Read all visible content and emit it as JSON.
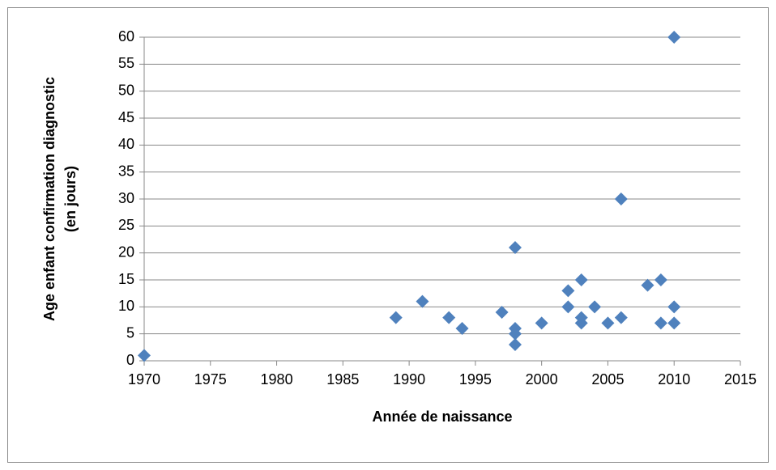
{
  "chart_data": {
    "type": "scatter",
    "xlabel": "Année de naissance",
    "ylabel": [
      "Age enfant confirmation diagnostic",
      "(en jours)"
    ],
    "x": [
      1970,
      1989,
      1991,
      1993,
      1994,
      1997,
      1998,
      1998,
      1998,
      1998,
      2000,
      2002,
      2002,
      2003,
      2003,
      2003,
      2004,
      2005,
      2006,
      2006,
      2008,
      2009,
      2009,
      2010,
      2010,
      2010
    ],
    "values": [
      1,
      8,
      11,
      8,
      6,
      9,
      21,
      6,
      5,
      3,
      7,
      13,
      10,
      15,
      8,
      7,
      10,
      7,
      30,
      8,
      14,
      15,
      7,
      60,
      10,
      7
    ],
    "color": "#4f81bd",
    "xlim": [
      1970,
      2015
    ],
    "xticks": [
      1970,
      1975,
      1980,
      1985,
      1990,
      1995,
      2000,
      2005,
      2010,
      2015
    ],
    "ylim": [
      0,
      60
    ],
    "yticks": [
      0,
      5,
      10,
      15,
      20,
      25,
      30,
      35,
      40,
      45,
      50,
      55,
      60
    ],
    "grid": true
  }
}
